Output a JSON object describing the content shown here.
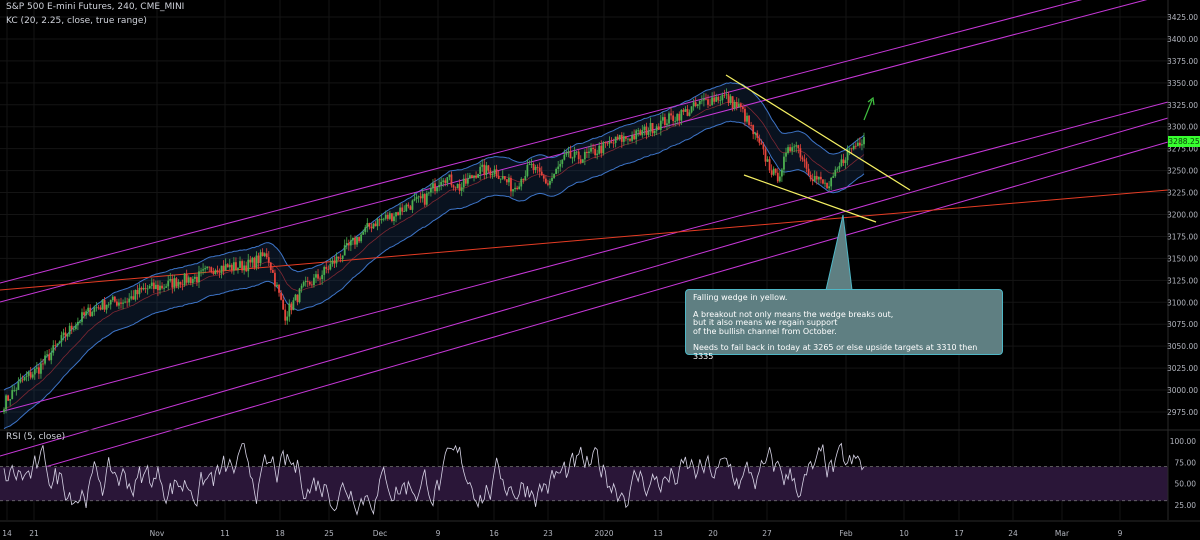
{
  "chart_data": {
    "type": "candlestick",
    "title": "S&P 500 E-mini Futures, 240, CME_MINI",
    "indicator_label": "KC (20, 2.25, close, true range)",
    "y_ticks": [
      2975,
      3000,
      3025,
      3050,
      3075,
      3100,
      3125,
      3150,
      3175,
      3200,
      3225,
      3250,
      3275,
      3300,
      3325,
      3350,
      3375,
      3400,
      3425
    ],
    "y_tick_labels": [
      "2975.00",
      "3000.00",
      "3025.00",
      "3050.00",
      "3075.00",
      "3100.00",
      "3125.00",
      "3150.00",
      "3175.00",
      "3200.00",
      "3225.00",
      "3250.00",
      "3275.00",
      "3300.00",
      "3325.00",
      "3350.00",
      "3375.00",
      "3400.00",
      "3425.00"
    ],
    "ylim": [
      2965,
      3445
    ],
    "x_tick_labels": [
      "14",
      "21",
      "Nov",
      "11",
      "18",
      "25",
      "Dec",
      "9",
      "16",
      "23",
      "2020",
      "13",
      "20",
      "27",
      "Feb",
      "10",
      "17",
      "24",
      "Mar",
      "9"
    ],
    "current_price": 3288.25,
    "current_price_label": "3288.25",
    "price_path": [
      [
        0,
        2985
      ],
      [
        1,
        3010
      ],
      [
        2,
        3025
      ],
      [
        3,
        3050
      ],
      [
        4,
        3075
      ],
      [
        5,
        3092
      ],
      [
        6,
        3100
      ],
      [
        7,
        3102
      ],
      [
        8,
        3115
      ],
      [
        9,
        3118
      ],
      [
        10,
        3125
      ],
      [
        11,
        3128
      ],
      [
        12,
        3140
      ],
      [
        13,
        3140
      ],
      [
        14,
        3143
      ],
      [
        15,
        3155
      ],
      [
        16,
        3085
      ],
      [
        17,
        3115
      ],
      [
        18,
        3130
      ],
      [
        19,
        3150
      ],
      [
        20,
        3170
      ],
      [
        21,
        3190
      ],
      [
        22,
        3198
      ],
      [
        23,
        3210
      ],
      [
        24,
        3218
      ],
      [
        25,
        3245
      ],
      [
        26,
        3230
      ],
      [
        27,
        3250
      ],
      [
        28,
        3250
      ],
      [
        29,
        3230
      ],
      [
        30,
        3255
      ],
      [
        31,
        3235
      ],
      [
        32,
        3265
      ],
      [
        33,
        3265
      ],
      [
        34,
        3275
      ],
      [
        35,
        3285
      ],
      [
        36,
        3290
      ],
      [
        37,
        3300
      ],
      [
        38,
        3310
      ],
      [
        39,
        3318
      ],
      [
        40,
        3330
      ],
      [
        41,
        3335
      ],
      [
        42,
        3320
      ],
      [
        43,
        3280
      ],
      [
        44,
        3240
      ],
      [
        45,
        3285
      ],
      [
        46,
        3245
      ],
      [
        47,
        3230
      ],
      [
        48,
        3270
      ],
      [
        49,
        3288.25
      ]
    ],
    "rsi": {
      "label": "RSI (5, close)",
      "y_ticks": [
        25,
        50,
        75,
        100
      ],
      "y_tick_labels": [
        "25.00",
        "50.00",
        "75.00",
        "100.00"
      ],
      "ylim": [
        10,
        110
      ],
      "band": [
        30,
        70
      ]
    },
    "colors": {
      "up": "#4caf50",
      "down": "#e8453c",
      "channel": "#c737d8",
      "keltner": "#3d74c7",
      "keltner_fill": "rgba(40,80,140,0.22)",
      "wedge": "#f5f063",
      "trendline": "#e53c24",
      "projection": "#40c040",
      "rsi_band": "#2a1638",
      "rsi_line": "#d7d3e6"
    }
  },
  "annotation": {
    "line1": "Falling wedge in yellow.",
    "line2": "A breakout not only means the wedge breaks out,",
    "line3": "but it also means we regain support",
    "line4": "of the bullish channel from October.",
    "line5": "Needs to fail back in today at 3265 or else upside targets at 3310 then 3335"
  }
}
